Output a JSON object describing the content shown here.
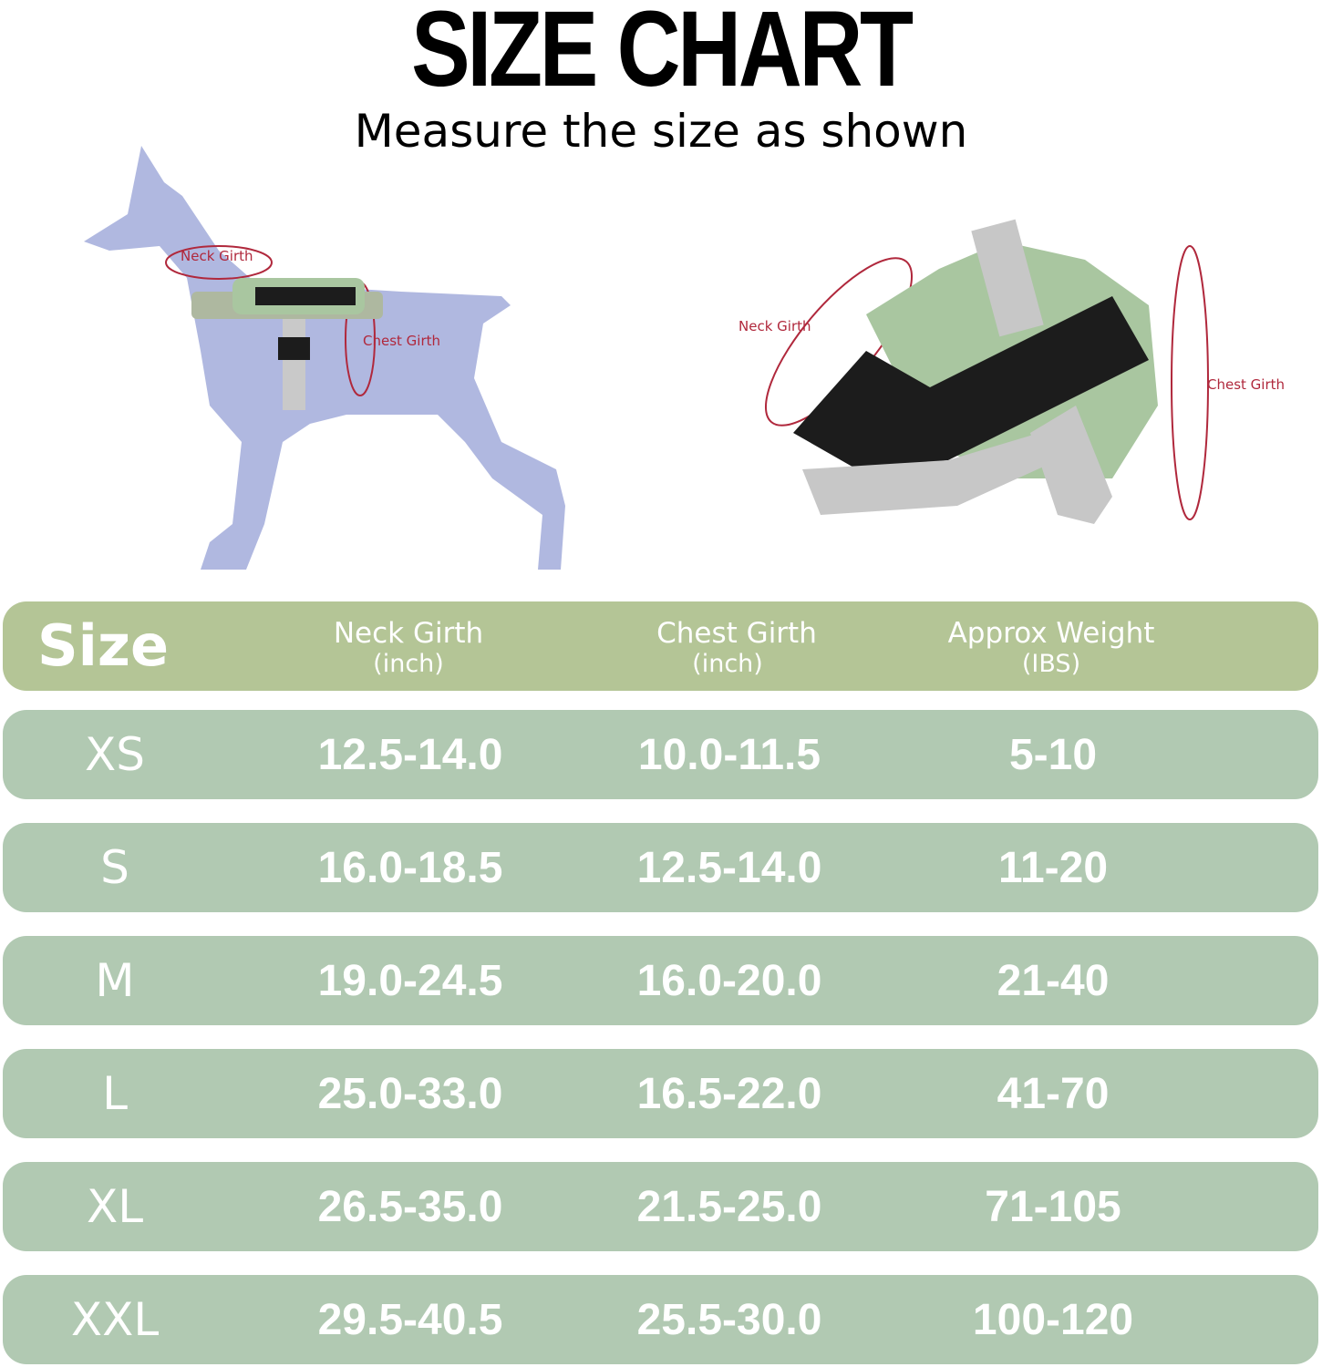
{
  "title": "SIZE CHART",
  "subtitle": "Measure the size as shown",
  "illustration": {
    "dog_labels": {
      "neck": "Neck Girth",
      "chest": "Chest Girth"
    },
    "harness_labels": {
      "neck": "Neck Girth",
      "chest": "Chest Girth"
    }
  },
  "colors": {
    "header": "#b4c596",
    "row": "#b1c9b2",
    "dog": "#b0b8e0",
    "measure_line": "#b0283c"
  },
  "table": {
    "headers": [
      {
        "label": "Size"
      },
      {
        "label": "Neck Girth",
        "unit": "(inch)"
      },
      {
        "label": "Chest Girth",
        "unit": "(inch)"
      },
      {
        "label": "Approx Weight",
        "unit": "(IBS)"
      }
    ],
    "rows": [
      {
        "size": "XS",
        "neck": "12.5-14.0",
        "chest": "10.0-11.5",
        "weight": "5-10"
      },
      {
        "size": "S",
        "neck": "16.0-18.5",
        "chest": "12.5-14.0",
        "weight": "11-20"
      },
      {
        "size": "M",
        "neck": "19.0-24.5",
        "chest": "16.0-20.0",
        "weight": "21-40"
      },
      {
        "size": "L",
        "neck": "25.0-33.0",
        "chest": "16.5-22.0",
        "weight": "41-70"
      },
      {
        "size": "XL",
        "neck": "26.5-35.0",
        "chest": "21.5-25.0",
        "weight": "71-105"
      },
      {
        "size": "XXL",
        "neck": "29.5-40.5",
        "chest": "25.5-30.0",
        "weight": "100-120"
      }
    ]
  }
}
